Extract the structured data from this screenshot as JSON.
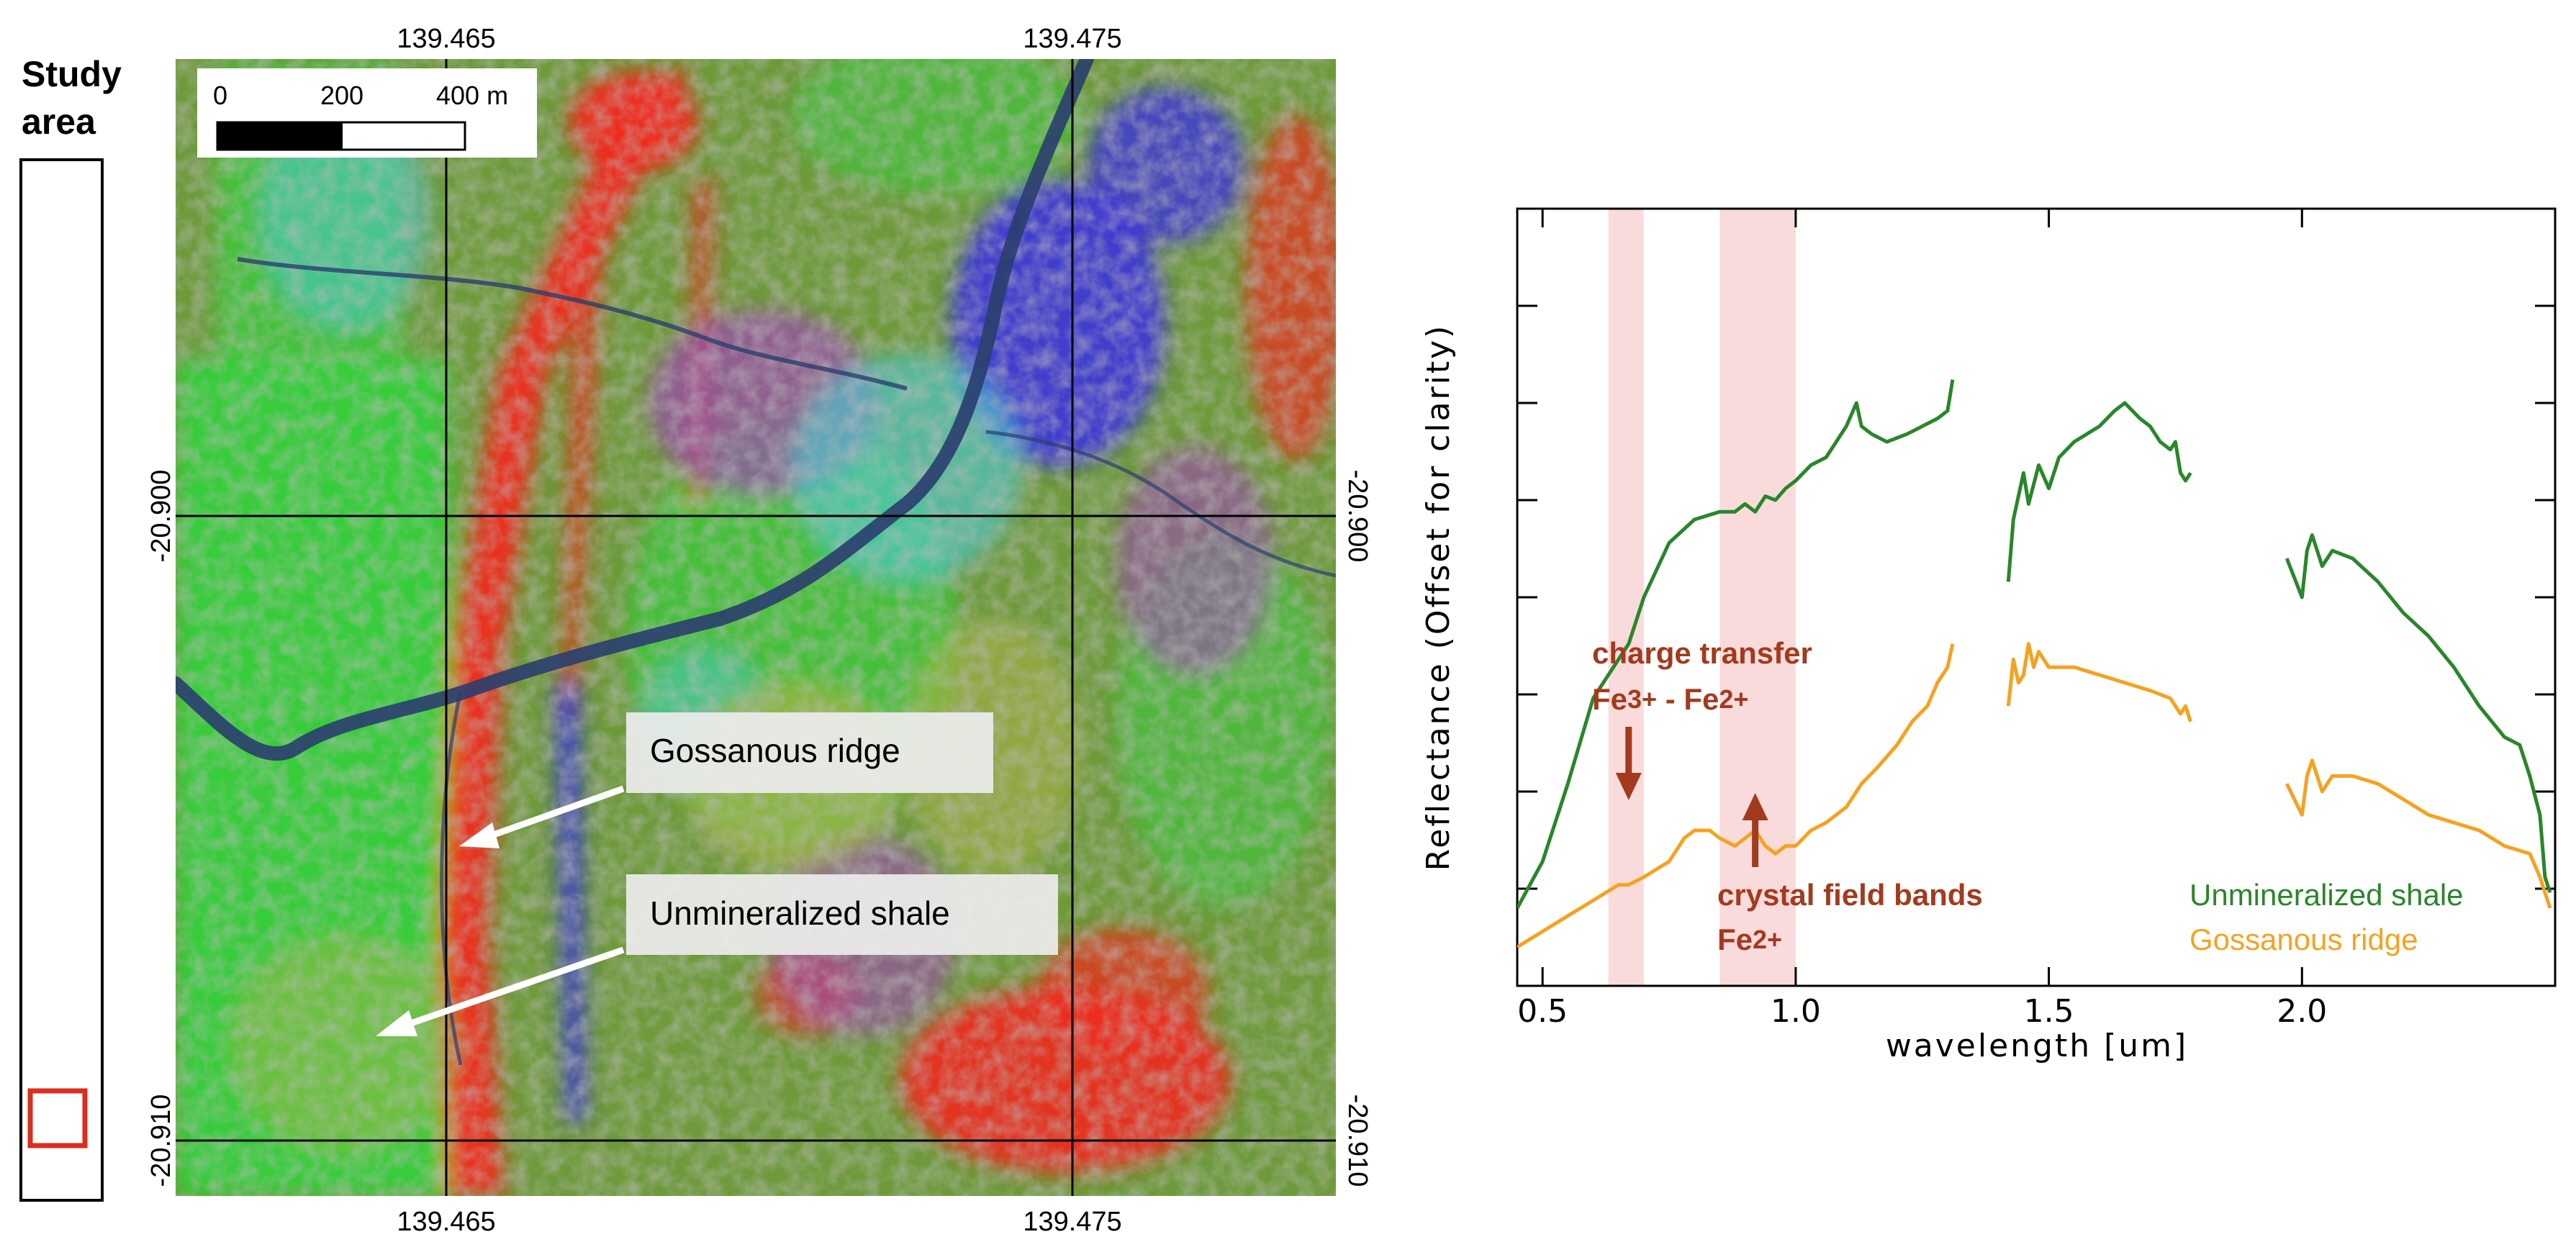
{
  "study_area": {
    "label_line1": "Study",
    "label_line2": "area",
    "box_color": "#d92e20"
  },
  "map": {
    "lon_ticks": [
      "139.465",
      "139.475"
    ],
    "lat_ticks": [
      "-20.900",
      "-20.910"
    ],
    "scale_bar": {
      "labels": [
        "0",
        "200",
        "400 m"
      ],
      "max_m": 400
    },
    "callouts": [
      "Gossanous ridge",
      "Unmineralized shale"
    ],
    "surface_colors": {
      "base": "#6e9a3a",
      "green": "#32d23c",
      "red": "#f02a1e",
      "blue": "#3a2ee6",
      "purple": "#9c48b4",
      "cyan": "#4ec8d0",
      "olive": "#a8b048",
      "river": "#2a3e6e"
    }
  },
  "chart_data": {
    "type": "line",
    "title": "",
    "xlabel": "wavelength [um]",
    "ylabel": "Reflectance (Offset for clarity)",
    "xlim": [
      0.45,
      2.5
    ],
    "ylim": [
      0,
      1
    ],
    "xticks": [
      0.5,
      1.0,
      1.5,
      2.0
    ],
    "xtick_labels": [
      "0.5",
      "1.0",
      "1.5",
      "2.0"
    ],
    "yticks_count": 8,
    "grid": false,
    "legend": {
      "placement": "bottom-right",
      "entries": [
        "Unmineralized shale",
        "Gossanous ridge"
      ]
    },
    "shaded_bands": [
      {
        "from": 0.63,
        "to": 0.7
      },
      {
        "from": 0.85,
        "to": 1.0
      }
    ],
    "band_color": "#fadbdb",
    "annotations": [
      {
        "text": "charge transfer",
        "color": "#a33a1e"
      },
      {
        "text_parts": [
          "Fe",
          "3+",
          " - Fe",
          "2+"
        ],
        "color": "#a33a1e",
        "arrow_at": 0.67,
        "arrow": "down"
      },
      {
        "text": "crystal field bands",
        "color": "#a33a1e"
      },
      {
        "text_parts": [
          "Fe",
          "2+"
        ],
        "color": "#a33a1e",
        "arrow_at": 0.92,
        "arrow": "up"
      }
    ],
    "series": [
      {
        "name": "Unmineralized shale",
        "color": "#2a862a",
        "segments": [
          [
            [
              0.45,
              0.1
            ],
            [
              0.5,
              0.16
            ],
            [
              0.55,
              0.26
            ],
            [
              0.6,
              0.37
            ],
            [
              0.65,
              0.42
            ],
            [
              0.67,
              0.44
            ],
            [
              0.7,
              0.5
            ],
            [
              0.75,
              0.57
            ],
            [
              0.8,
              0.6
            ],
            [
              0.85,
              0.61
            ],
            [
              0.88,
              0.61
            ],
            [
              0.9,
              0.62
            ],
            [
              0.92,
              0.61
            ],
            [
              0.94,
              0.63
            ],
            [
              0.96,
              0.625
            ],
            [
              0.98,
              0.64
            ],
            [
              1.0,
              0.65
            ],
            [
              1.03,
              0.67
            ],
            [
              1.06,
              0.68
            ],
            [
              1.08,
              0.7
            ],
            [
              1.1,
              0.72
            ],
            [
              1.12,
              0.75
            ],
            [
              1.13,
              0.72
            ],
            [
              1.15,
              0.71
            ],
            [
              1.18,
              0.7
            ],
            [
              1.22,
              0.71
            ],
            [
              1.25,
              0.72
            ],
            [
              1.28,
              0.73
            ],
            [
              1.3,
              0.74
            ],
            [
              1.31,
              0.78
            ]
          ],
          [
            [
              1.42,
              0.52
            ],
            [
              1.43,
              0.6
            ],
            [
              1.45,
              0.66
            ],
            [
              1.46,
              0.62
            ],
            [
              1.48,
              0.67
            ],
            [
              1.5,
              0.64
            ],
            [
              1.52,
              0.68
            ],
            [
              1.55,
              0.7
            ],
            [
              1.6,
              0.72
            ],
            [
              1.63,
              0.74
            ],
            [
              1.65,
              0.75
            ],
            [
              1.68,
              0.73
            ],
            [
              1.7,
              0.72
            ],
            [
              1.72,
              0.7
            ],
            [
              1.74,
              0.69
            ],
            [
              1.75,
              0.7
            ],
            [
              1.76,
              0.66
            ],
            [
              1.77,
              0.65
            ],
            [
              1.78,
              0.66
            ]
          ],
          [
            [
              1.97,
              0.55
            ],
            [
              2.0,
              0.5
            ],
            [
              2.01,
              0.56
            ],
            [
              2.02,
              0.58
            ],
            [
              2.04,
              0.54
            ],
            [
              2.06,
              0.56
            ],
            [
              2.1,
              0.55
            ],
            [
              2.15,
              0.52
            ],
            [
              2.2,
              0.48
            ],
            [
              2.25,
              0.45
            ],
            [
              2.3,
              0.41
            ],
            [
              2.35,
              0.36
            ],
            [
              2.4,
              0.32
            ],
            [
              2.43,
              0.31
            ],
            [
              2.45,
              0.27
            ],
            [
              2.47,
              0.22
            ],
            [
              2.48,
              0.14
            ],
            [
              2.49,
              0.12
            ]
          ]
        ]
      },
      {
        "name": "Gossanous ridge",
        "color": "#f5a220",
        "segments": [
          [
            [
              0.45,
              0.05
            ],
            [
              0.5,
              0.07
            ],
            [
              0.55,
              0.09
            ],
            [
              0.6,
              0.11
            ],
            [
              0.65,
              0.13
            ],
            [
              0.67,
              0.13
            ],
            [
              0.7,
              0.14
            ],
            [
              0.75,
              0.16
            ],
            [
              0.78,
              0.19
            ],
            [
              0.8,
              0.2
            ],
            [
              0.83,
              0.2
            ],
            [
              0.85,
              0.19
            ],
            [
              0.88,
              0.18
            ],
            [
              0.9,
              0.19
            ],
            [
              0.92,
              0.2
            ],
            [
              0.94,
              0.18
            ],
            [
              0.96,
              0.17
            ],
            [
              0.98,
              0.18
            ],
            [
              1.0,
              0.18
            ],
            [
              1.03,
              0.2
            ],
            [
              1.06,
              0.21
            ],
            [
              1.1,
              0.23
            ],
            [
              1.13,
              0.26
            ],
            [
              1.16,
              0.28
            ],
            [
              1.2,
              0.31
            ],
            [
              1.23,
              0.34
            ],
            [
              1.26,
              0.36
            ],
            [
              1.28,
              0.39
            ],
            [
              1.3,
              0.41
            ],
            [
              1.31,
              0.44
            ]
          ],
          [
            [
              1.42,
              0.36
            ],
            [
              1.43,
              0.42
            ],
            [
              1.44,
              0.39
            ],
            [
              1.45,
              0.4
            ],
            [
              1.46,
              0.44
            ],
            [
              1.47,
              0.41
            ],
            [
              1.48,
              0.43
            ],
            [
              1.5,
              0.41
            ],
            [
              1.55,
              0.41
            ],
            [
              1.6,
              0.4
            ],
            [
              1.65,
              0.39
            ],
            [
              1.7,
              0.38
            ],
            [
              1.74,
              0.37
            ],
            [
              1.76,
              0.35
            ],
            [
              1.77,
              0.36
            ],
            [
              1.78,
              0.34
            ]
          ],
          [
            [
              1.97,
              0.26
            ],
            [
              2.0,
              0.22
            ],
            [
              2.01,
              0.27
            ],
            [
              2.02,
              0.29
            ],
            [
              2.04,
              0.25
            ],
            [
              2.06,
              0.27
            ],
            [
              2.1,
              0.27
            ],
            [
              2.15,
              0.26
            ],
            [
              2.2,
              0.24
            ],
            [
              2.25,
              0.22
            ],
            [
              2.3,
              0.21
            ],
            [
              2.35,
              0.2
            ],
            [
              2.4,
              0.18
            ],
            [
              2.45,
              0.17
            ],
            [
              2.47,
              0.14
            ],
            [
              2.49,
              0.1
            ]
          ]
        ]
      }
    ]
  }
}
